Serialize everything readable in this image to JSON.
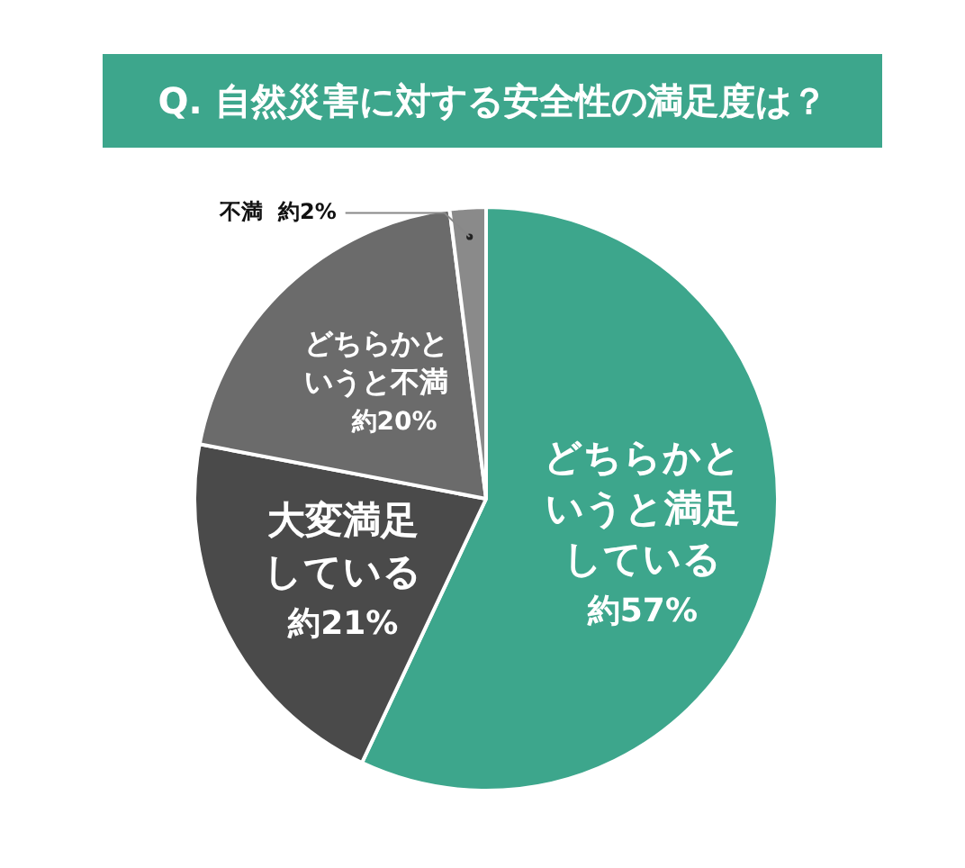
{
  "chart_data": {
    "type": "pie",
    "title": "Q. 自然災害に対する安全性の満足度は？",
    "categories": [
      "どちらかというと満足している",
      "大変満足している",
      "どちらかというと不満",
      "不満"
    ],
    "values": [
      57,
      21,
      20,
      2
    ],
    "colors": [
      "#3da68c",
      "#4a4a4a",
      "#6b6b6b",
      "#8a8a8a"
    ],
    "value_labels": [
      "約57%",
      "約21%",
      "約20%",
      "約2%"
    ],
    "legend": false
  }
}
